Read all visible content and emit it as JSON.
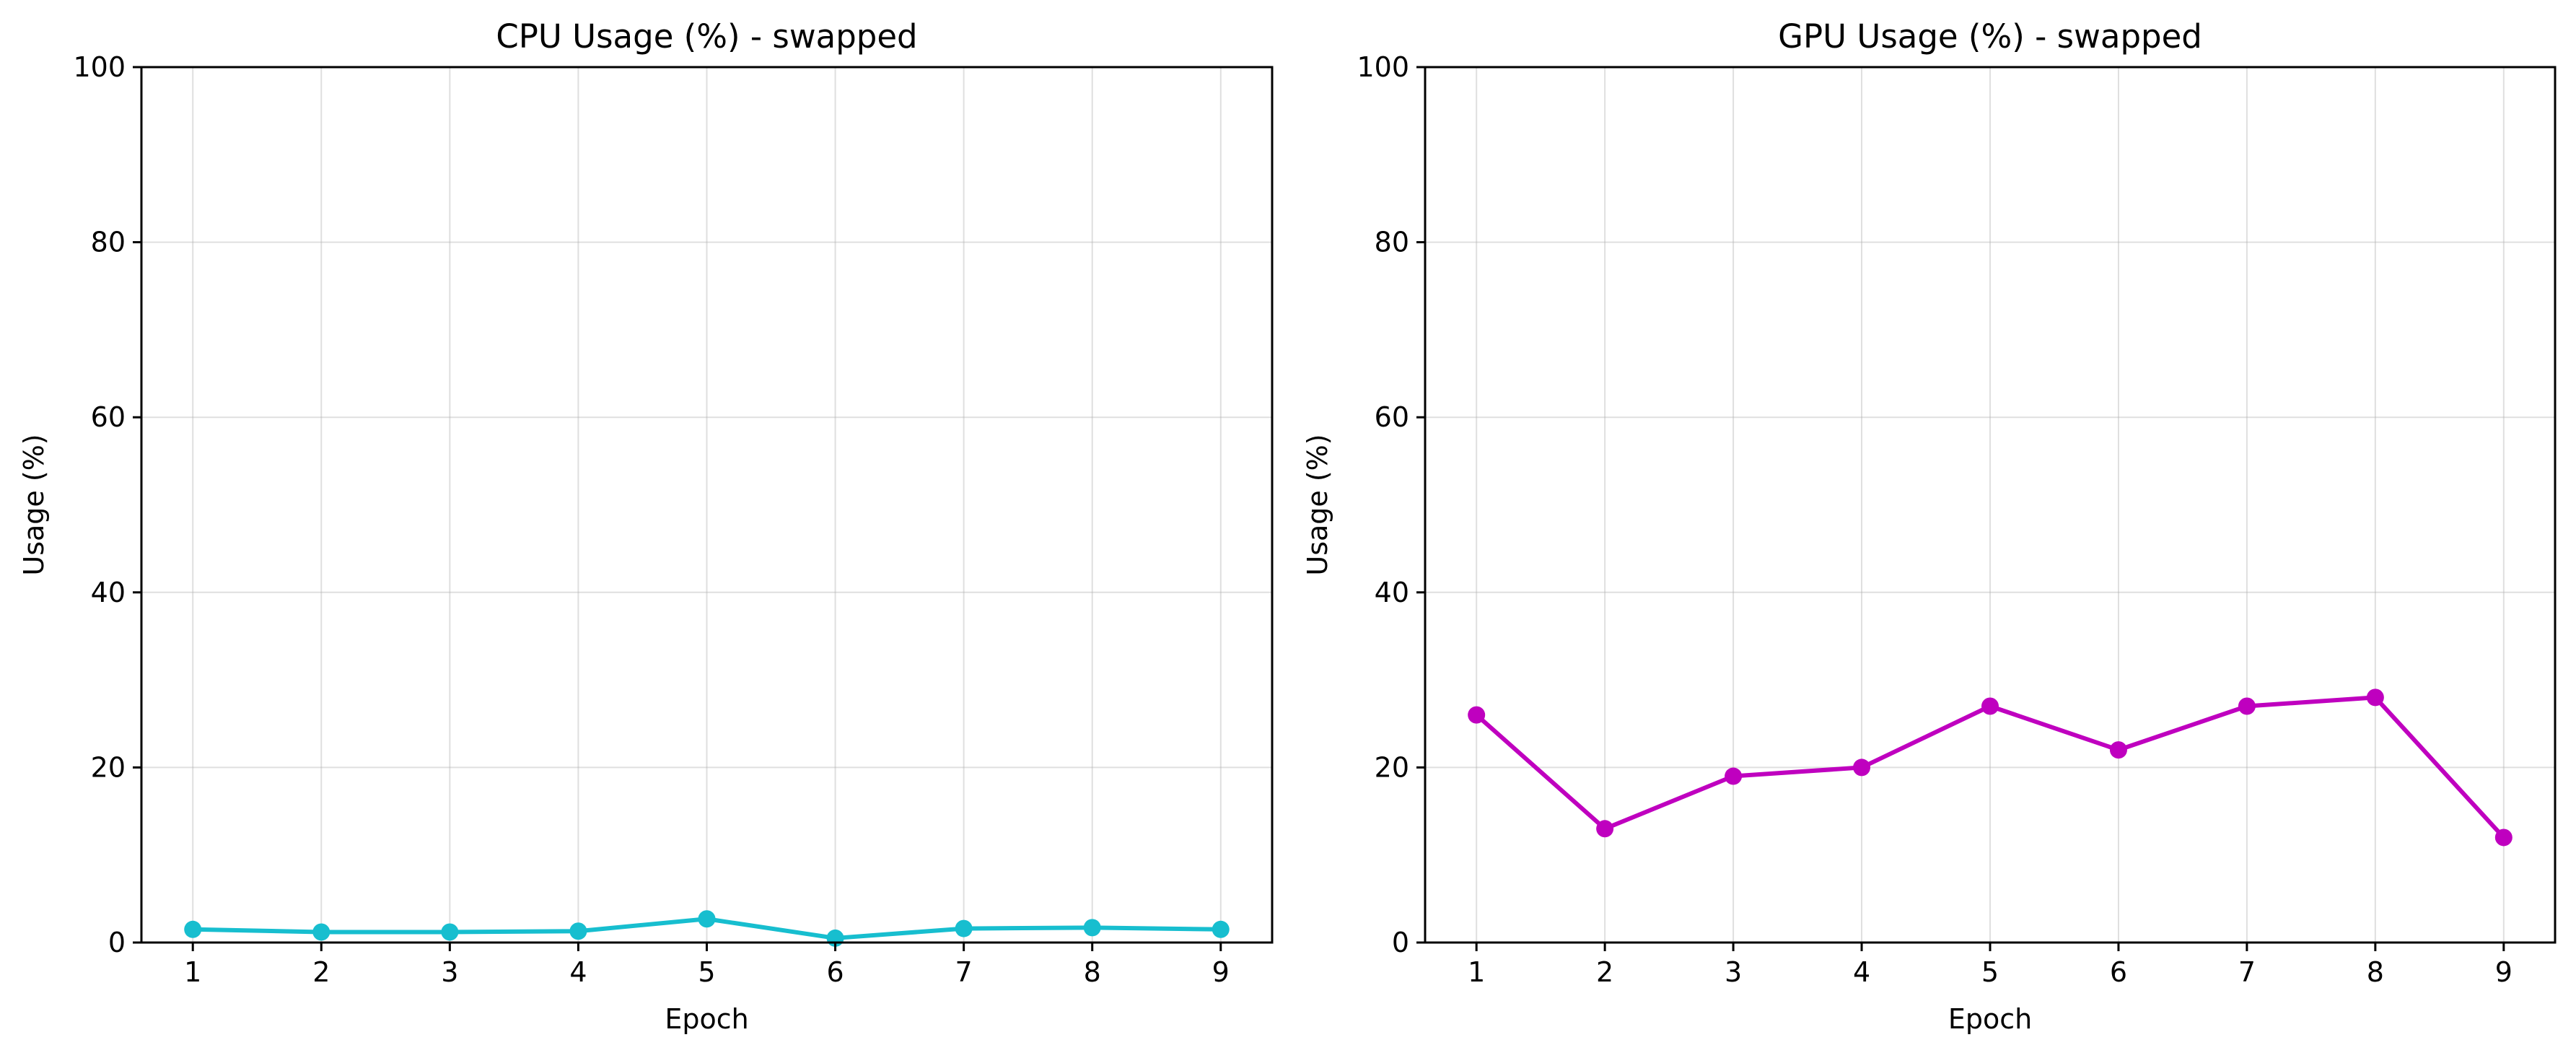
{
  "chart_data": [
    {
      "type": "line",
      "title": "CPU Usage (%) - swapped",
      "xlabel": "Epoch",
      "ylabel": "Usage (%)",
      "x": [
        1,
        2,
        3,
        4,
        5,
        6,
        7,
        8,
        9
      ],
      "xticks": [
        "1",
        "2",
        "3",
        "4",
        "5",
        "6",
        "7",
        "8",
        "9"
      ],
      "ylim": [
        0,
        100
      ],
      "yticks": [
        "0",
        "20",
        "40",
        "60",
        "80",
        "100"
      ],
      "grid": true,
      "series": [
        {
          "values": [
            1.5,
            1.2,
            1.2,
            1.3,
            2.7,
            0.5,
            1.6,
            1.7,
            1.5
          ],
          "color": "#17becf",
          "marker": "circle"
        }
      ]
    },
    {
      "type": "line",
      "title": "GPU Usage (%) - swapped",
      "xlabel": "Epoch",
      "ylabel": "Usage (%)",
      "x": [
        1,
        2,
        3,
        4,
        5,
        6,
        7,
        8,
        9
      ],
      "xticks": [
        "1",
        "2",
        "3",
        "4",
        "5",
        "6",
        "7",
        "8",
        "9"
      ],
      "ylim": [
        0,
        100
      ],
      "yticks": [
        "0",
        "20",
        "40",
        "60",
        "80",
        "100"
      ],
      "grid": true,
      "series": [
        {
          "values": [
            26,
            13,
            19,
            20,
            27,
            22,
            27,
            28,
            12
          ],
          "color": "#bf00bf",
          "marker": "circle"
        }
      ]
    }
  ]
}
